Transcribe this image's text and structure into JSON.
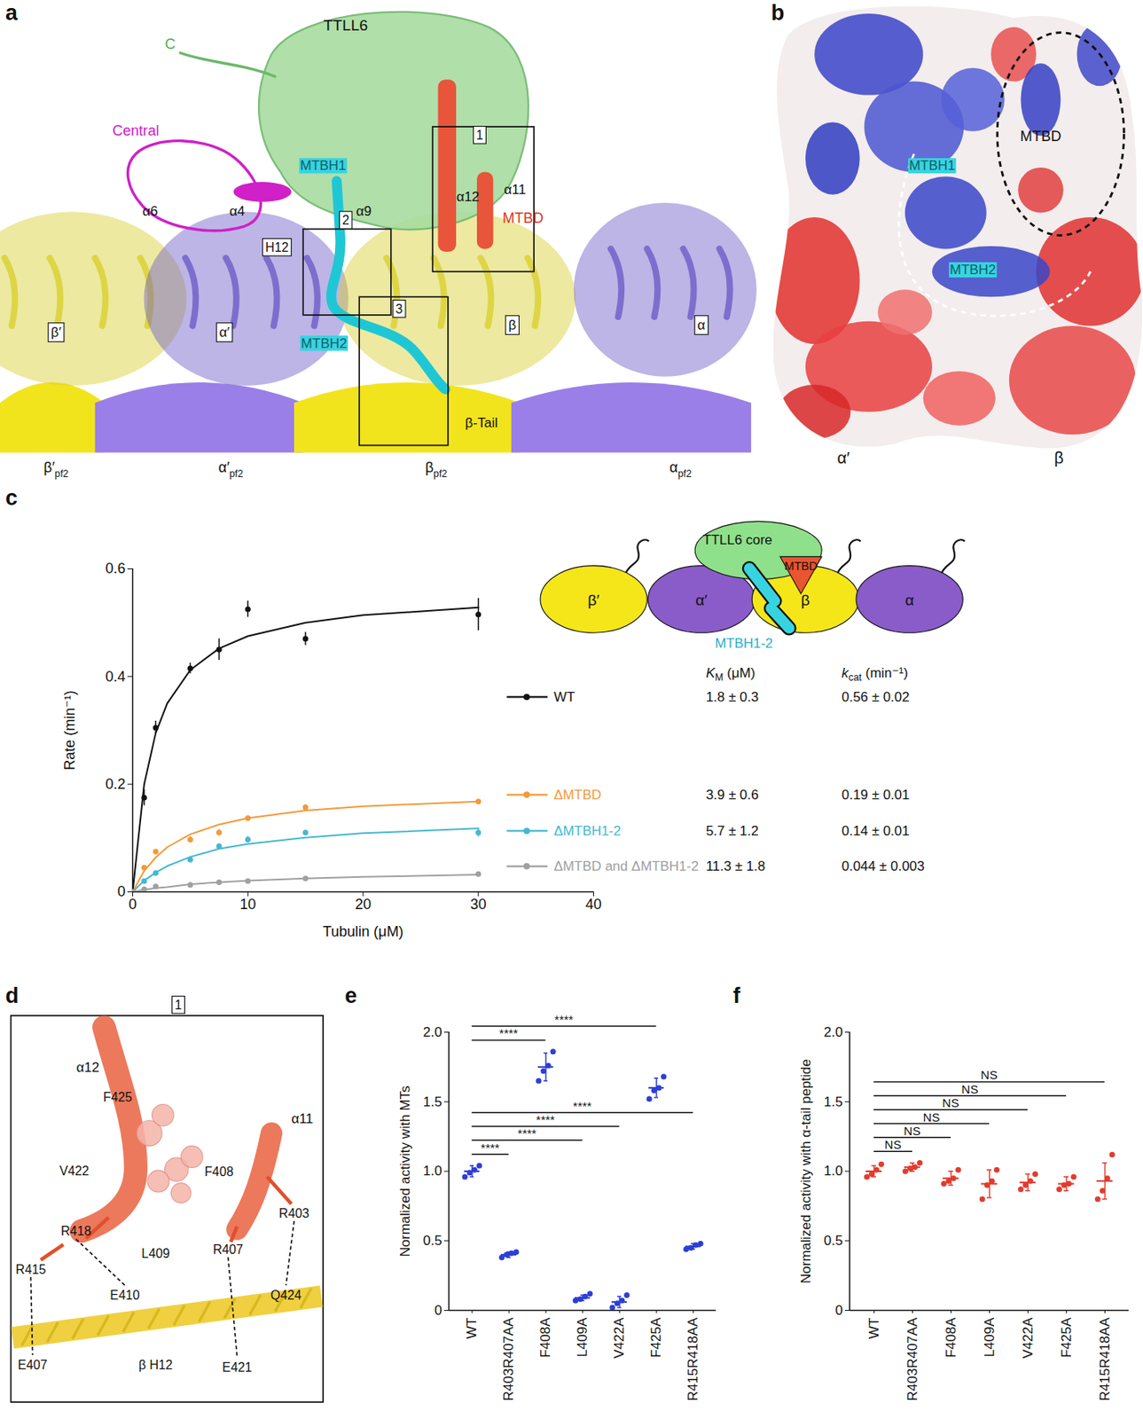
{
  "panel_letters": [
    "a",
    "b",
    "c",
    "d",
    "e",
    "f"
  ],
  "panel_a": {
    "ttll6": "TTLL6",
    "c_terminus": "C",
    "central": "Central",
    "mtbh1": "MTBH1",
    "mtbh2": "MTBH2",
    "mtbd": "MTBD",
    "helices": {
      "a6": "α6",
      "a4": "α4",
      "a9": "α9",
      "a11": "α11",
      "a12": "α12",
      "h12": "H12"
    },
    "boxes": [
      "1",
      "2",
      "3"
    ],
    "subunits": [
      "β′",
      "α′",
      "β",
      "α"
    ],
    "beta_tail": "β-Tail",
    "protofilament": [
      {
        "text": "β′",
        "sub": "pf2"
      },
      {
        "text": "α′",
        "sub": "pf2"
      },
      {
        "text": "β",
        "sub": "pf2"
      },
      {
        "text": "α",
        "sub": "pf2"
      }
    ]
  },
  "panel_b": {
    "mtbh1": "MTBH1",
    "mtbd": "MTBD",
    "mtbh2": "MTBH2",
    "subunits": [
      "α′",
      "β"
    ]
  },
  "panel_d": {
    "box": "1",
    "helices": [
      "α12",
      "α11"
    ],
    "residues": [
      "F425",
      "V422",
      "F408",
      "R403",
      "R418",
      "L409",
      "R407",
      "R415",
      "E410",
      "Q424",
      "E407",
      "E421"
    ],
    "tubulin_helix": "β H12"
  },
  "chart_data": [
    {
      "type": "line",
      "xlabel": "Tubulin (μM)",
      "ylabel": "Rate (min⁻¹)",
      "xlim": [
        0,
        40
      ],
      "xticks": [
        0,
        10,
        20,
        30,
        40
      ],
      "ylim": [
        0,
        0.6
      ],
      "yticks": [
        0,
        0.2,
        0.4,
        0.6
      ],
      "marker": "circle",
      "x": [
        0,
        1,
        2,
        5,
        7.5,
        10,
        15,
        30
      ],
      "fit_x": [
        0,
        1,
        2,
        3,
        5,
        7.5,
        10,
        15,
        20,
        30
      ],
      "kinetics_headers": [
        {
          "symbol": "K",
          "sub": "M",
          "unit": " (μM)"
        },
        {
          "symbol": "k",
          "sub": "cat",
          "unit": " (min⁻¹)"
        }
      ],
      "schematic": {
        "core": "TTLL6 core",
        "mtbd": "MTBD",
        "mtbh": "MTBH1-2",
        "subunits": [
          "β′",
          "α′",
          "β",
          "α"
        ]
      },
      "series": [
        {
          "name": "WT",
          "color": "#111111",
          "values": [
            0,
            0.175,
            0.305,
            0.415,
            0.45,
            0.525,
            0.47,
            0.515
          ],
          "errors": [
            0,
            0.015,
            0.012,
            0.01,
            0.02,
            0.015,
            0.012,
            0.03
          ],
          "fit": [
            0,
            0.2,
            0.295,
            0.35,
            0.412,
            0.452,
            0.475,
            0.5,
            0.514,
            0.528
          ],
          "km": "1.8 ± 0.3",
          "kcat": "0.56 ± 0.02"
        },
        {
          "name": "ΔMTBD",
          "color": "#f39a3a",
          "values": [
            0,
            0.045,
            0.075,
            0.097,
            0.11,
            0.137,
            0.157,
            0.168
          ],
          "errors": [
            0,
            0.003,
            0.004,
            0.006,
            0.006,
            0.003,
            0.005,
            0.003
          ],
          "fit": [
            0,
            0.039,
            0.064,
            0.083,
            0.107,
            0.125,
            0.137,
            0.151,
            0.159,
            0.168
          ],
          "km": "3.9 ± 0.6",
          "kcat": "0.19 ± 0.01"
        },
        {
          "name": "ΔMTBH1-2",
          "color": "#45b8d0",
          "values": [
            0,
            0.02,
            0.035,
            0.06,
            0.085,
            0.097,
            0.11,
            0.11
          ],
          "errors": [
            0,
            0.003,
            0.004,
            0.006,
            0.004,
            0.006,
            0.004,
            0.008
          ],
          "fit": [
            0,
            0.021,
            0.036,
            0.048,
            0.065,
            0.08,
            0.089,
            0.101,
            0.109,
            0.118
          ],
          "km": "5.7 ± 1.2",
          "kcat": "0.14 ± 0.01"
        },
        {
          "name": "ΔMTBD and ΔMTBH1-2",
          "color": "#a0a0a0",
          "values": [
            0,
            0.005,
            0.01,
            0.013,
            0.018,
            0.02,
            0.025,
            0.033
          ],
          "errors": [
            0,
            0.001,
            0.002,
            0.002,
            0.002,
            0.003,
            0.002,
            0.002
          ],
          "fit": [
            0,
            0.004,
            0.007,
            0.009,
            0.014,
            0.018,
            0.021,
            0.025,
            0.028,
            0.032
          ],
          "km": "11.3 ± 1.8",
          "kcat": "0.044 ± 0.003"
        }
      ]
    },
    {
      "type": "scatter",
      "ylabel": "Normalized activity with MTs",
      "color": "#2d3ed6",
      "ylim": [
        0,
        2
      ],
      "yticks": [
        0,
        0.5,
        {
          "value": 1,
          "label": "1.0"
        },
        1.5,
        {
          "value": 2,
          "label": "2.0"
        }
      ],
      "categories": [
        "WT",
        "R403R407AA",
        "F408A",
        "L409A",
        "V422A",
        "F425A",
        "R415R418AA"
      ],
      "values": [
        1.0,
        0.4,
        1.75,
        0.09,
        0.06,
        1.6,
        0.46
      ],
      "errors": [
        0.04,
        0.02,
        0.1,
        0.02,
        0.04,
        0.07,
        0.02
      ],
      "points": [
        [
          0.96,
          0.99,
          1.01,
          1.04
        ],
        [
          0.38,
          0.4,
          0.41,
          0.42
        ],
        [
          1.65,
          1.72,
          1.76,
          1.86
        ],
        [
          0.07,
          0.08,
          0.1,
          0.12
        ],
        [
          0.02,
          0.05,
          0.07,
          0.11
        ],
        [
          1.52,
          1.58,
          1.6,
          1.68
        ],
        [
          0.44,
          0.45,
          0.47,
          0.48
        ]
      ],
      "comparisons": [
        {
          "from": "WT",
          "to": "F425A",
          "label": "****"
        },
        {
          "from": "WT",
          "to": "F408A",
          "label": "****"
        },
        {
          "from": "WT",
          "to": "R415R418AA",
          "label": "****"
        },
        {
          "from": "WT",
          "to": "V422A",
          "label": "****"
        },
        {
          "from": "WT",
          "to": "L409A",
          "label": "****"
        },
        {
          "from": "WT",
          "to": "R403R407AA",
          "label": "****"
        }
      ]
    },
    {
      "type": "scatter",
      "ylabel": "Normalized activity with α-tail peptide",
      "color": "#e33b2f",
      "ylim": [
        0,
        2
      ],
      "yticks": [
        0,
        0.5,
        {
          "value": 1,
          "label": "1.0"
        },
        1.5,
        {
          "value": 2,
          "label": "2.0"
        }
      ],
      "categories": [
        "WT",
        "R403R407AA",
        "F408A",
        "L409A",
        "V422A",
        "F425A",
        "R415R418AA"
      ],
      "values": [
        1.0,
        1.03,
        0.95,
        0.91,
        0.92,
        0.91,
        0.93
      ],
      "errors": [
        0.04,
        0.03,
        0.05,
        0.1,
        0.06,
        0.05,
        0.13
      ],
      "points": [
        [
          0.96,
          0.98,
          1.01,
          1.05
        ],
        [
          1.0,
          1.02,
          1.03,
          1.06
        ],
        [
          0.91,
          0.93,
          0.95,
          1.01
        ],
        [
          0.8,
          0.9,
          0.93,
          1.01
        ],
        [
          0.87,
          0.9,
          0.93,
          0.98
        ],
        [
          0.87,
          0.9,
          0.91,
          0.96
        ],
        [
          0.8,
          0.86,
          0.95,
          1.12
        ]
      ],
      "comparisons": [
        {
          "from": "WT",
          "to": "R415R418AA",
          "label": "NS"
        },
        {
          "from": "WT",
          "to": "F425A",
          "label": "NS"
        },
        {
          "from": "WT",
          "to": "V422A",
          "label": "NS"
        },
        {
          "from": "WT",
          "to": "L409A",
          "label": "NS"
        },
        {
          "from": "WT",
          "to": "F408A",
          "label": "NS"
        },
        {
          "from": "WT",
          "to": "R403R407AA",
          "label": "NS"
        }
      ]
    }
  ]
}
